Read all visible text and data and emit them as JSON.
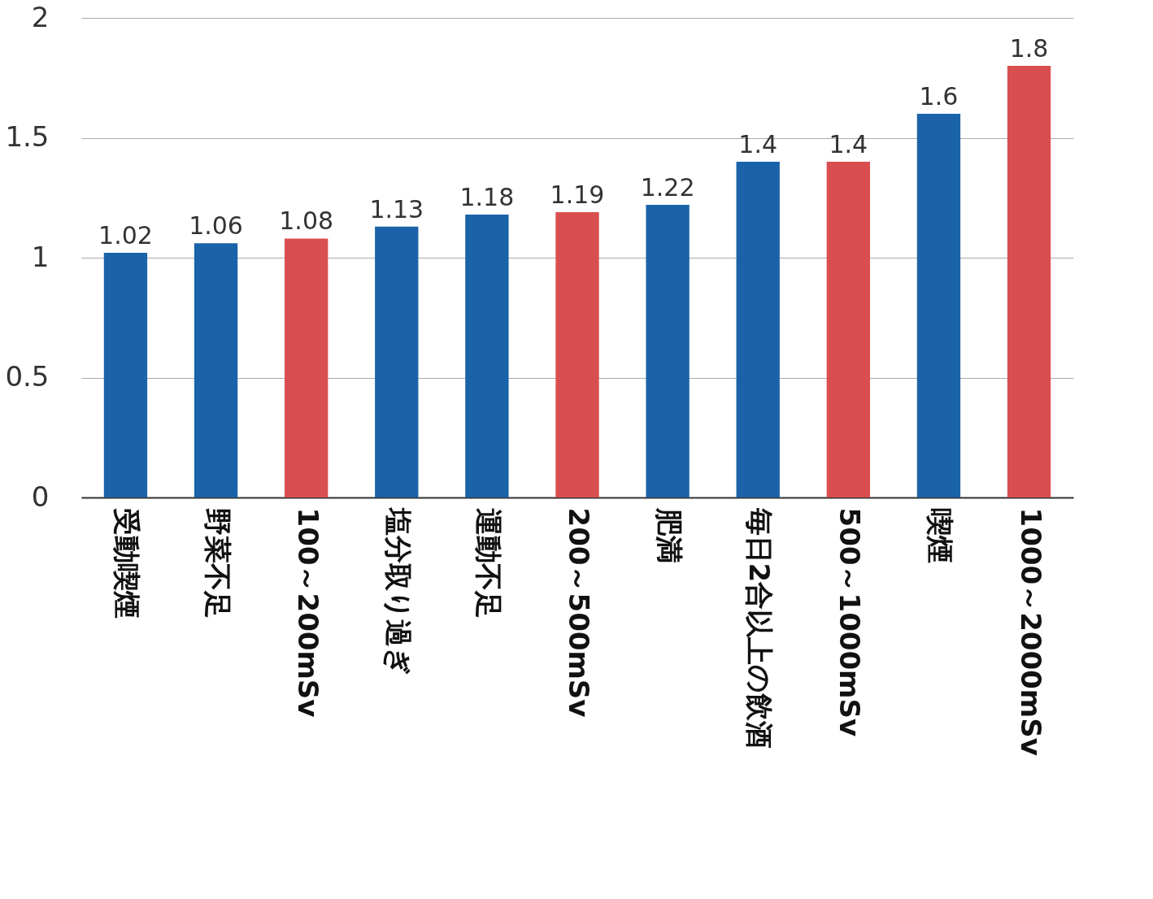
{
  "chart_data": {
    "type": "bar",
    "categories": [
      "受動喫煙",
      "野菜不足",
      "100～200mSv",
      "塩分取り過ぎ",
      "運動不足",
      "200～500mSv",
      "肥満",
      "毎日2合以上の飲酒",
      "500～1000mSv",
      "喫煙",
      "1000～2000mSv"
    ],
    "values": [
      1.02,
      1.06,
      1.08,
      1.13,
      1.18,
      1.19,
      1.22,
      1.4,
      1.4,
      1.6,
      1.8
    ],
    "colors": [
      "#1a63a8",
      "#1a63a8",
      "#d94f4f",
      "#1a63a8",
      "#1a63a8",
      "#d94f4f",
      "#1a63a8",
      "#1a63a8",
      "#d94f4f",
      "#1a63a8",
      "#d94f4f"
    ],
    "ylim": [
      0,
      2
    ],
    "yticks": [
      0,
      0.5,
      1,
      1.5,
      2
    ],
    "grid": "y",
    "data_labels": true
  }
}
